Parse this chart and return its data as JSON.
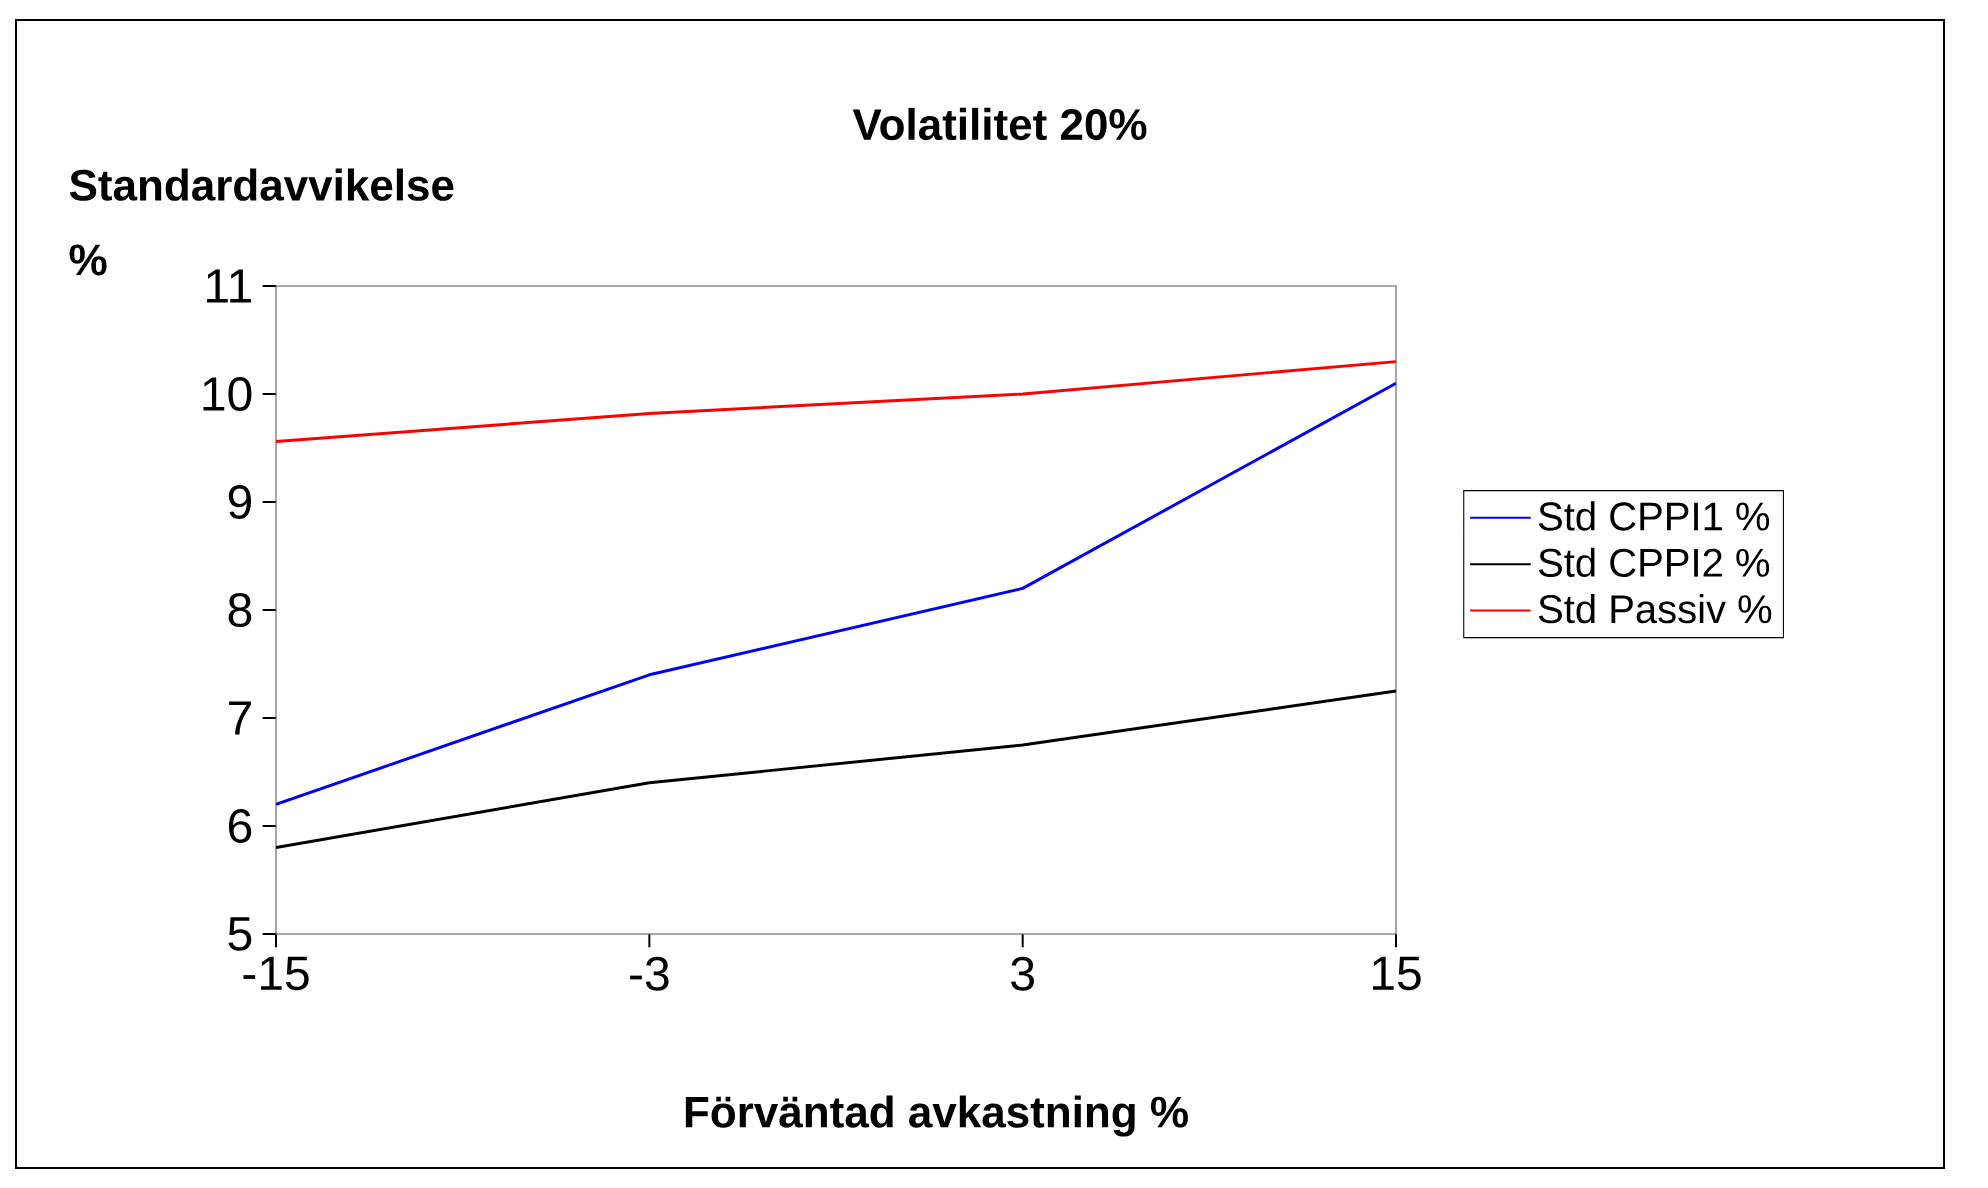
{
  "chart_data": {
    "type": "line",
    "title": "Volatilitet 20%",
    "xlabel": "Förväntad avkastning %",
    "ylabel": "Standardavvikelse %",
    "categories": [
      "-15",
      "-3",
      "3",
      "15"
    ],
    "series": [
      {
        "name": "Std CPPI1 %",
        "color": "#0000ff",
        "values": [
          6.2,
          7.4,
          8.2,
          10.1
        ]
      },
      {
        "name": "Std CPPI2 %",
        "color": "#000000",
        "values": [
          5.8,
          6.4,
          6.75,
          7.25
        ]
      },
      {
        "name": "Std Passiv %",
        "color": "#ff0000",
        "values": [
          9.56,
          9.82,
          10.0,
          10.3
        ]
      }
    ],
    "ylim": [
      5,
      11
    ],
    "yticks": [
      5,
      6,
      7,
      8,
      9,
      10,
      11
    ],
    "legend": "right"
  }
}
